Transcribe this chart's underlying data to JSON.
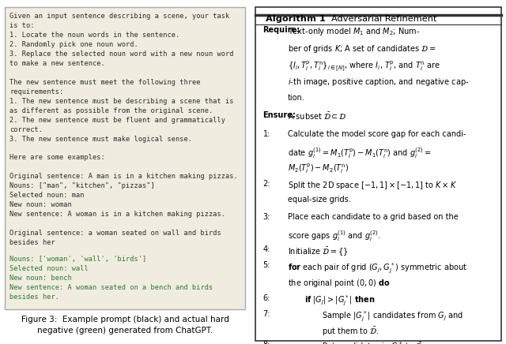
{
  "left_panel": {
    "background_color": "#f0ede0",
    "border_color": "#aaaaaa",
    "text_black": "Given an input sentence describing a scene, your task\nis to:\n1. Locate the noun words in the sentence.\n2. Randomly pick one noun word.\n3. Replace the selected noun word with a new noun word\nto make a new sentence.\n\nThe new sentence must meet the following three\nrequirements:\n1. The new sentence must be describing a scene that is\nas different as possible from the original scene.\n2. The new sentence must be fluent and grammatically\ncorrect.\n3. The new sentence must make logical sense.\n\nHere are some examples:\n\nOriginal sentence: A man is in a kitchen making pizzas.\nNouns: [\"man\", \"kitchen\", \"pizzas\"]\nSelected noun: man\nNew noun: woman\nNew sentence: A woman is in a kitchen making pizzas.\n\nOriginal sentence: a woman seated on wall and birds\nbesides her",
    "text_green": "Nouns: ['woman', 'wall', 'birds']\nSelected noun: wall\nNew noun: bench\nNew sentence: A woman seated on a bench and birds\nbesides her.",
    "caption": "Figure 3:  Example prompt (black) and actual hard\nnegative (green) generated from ChatGPT."
  }
}
